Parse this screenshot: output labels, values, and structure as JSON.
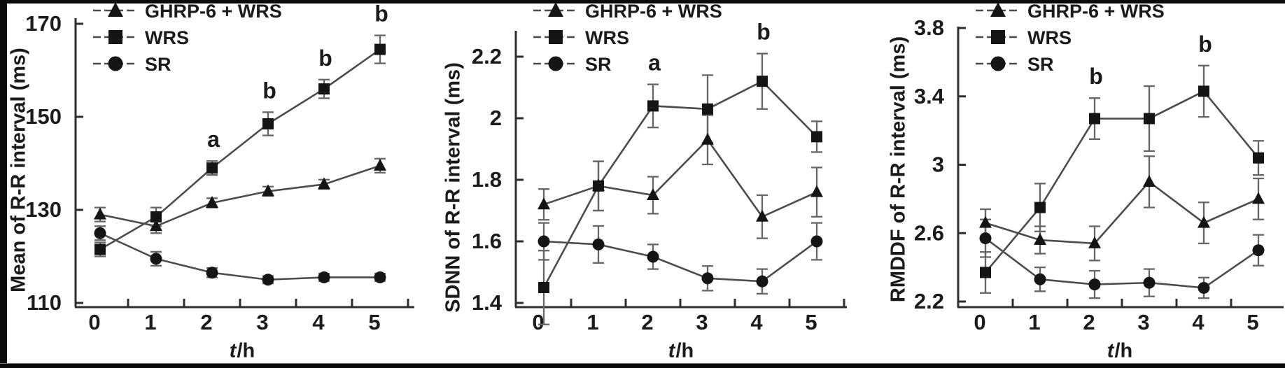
{
  "figure": {
    "description": "Three-panel line chart figure of heart-rate-variability measures over time",
    "background_color": "#ffffff",
    "border_color": "#0a0a0a",
    "ink_color": "#1b1b1b",
    "line_color": "#4c4c4c",
    "error_bar_color": "#666666",
    "marker_color": "#151515",
    "legend_labels": [
      "GHRP-6 + WRS",
      "WRS",
      "SR"
    ],
    "legend_markers": [
      "triangle-icon",
      "square-icon",
      "circle-icon"
    ]
  },
  "chart_data": [
    {
      "type": "line",
      "title": "",
      "ylabel": "Mean of R-R interval (ms)",
      "xlabel_italic": "t",
      "xlabel_rest": "/h",
      "x": [
        0,
        1,
        2,
        3,
        4,
        5
      ],
      "xticklabels": [
        "0",
        "1",
        "2",
        "3",
        "4",
        "5"
      ],
      "yticks": [
        110,
        130,
        150,
        170
      ],
      "ylim": [
        110,
        170
      ],
      "grid": false,
      "legend_position": "top-left",
      "series": [
        {
          "name": "GHRP-6 + WRS",
          "marker": "triangle",
          "values": [
            129,
            126.5,
            131.5,
            134,
            135.5,
            139.5
          ],
          "errors": [
            1.5,
            1.5,
            1,
            1,
            1,
            1.5
          ]
        },
        {
          "name": "WRS",
          "marker": "square",
          "values": [
            121.5,
            128.5,
            139,
            148.5,
            156,
            164.5
          ],
          "errors": [
            1.5,
            2,
            1.5,
            2.5,
            2,
            3
          ]
        },
        {
          "name": "SR",
          "marker": "circle",
          "values": [
            125,
            119.5,
            116.5,
            115,
            115.5,
            115.5
          ],
          "errors": [
            1.5,
            1.5,
            1,
            0.8,
            0.8,
            0.8
          ]
        }
      ],
      "annotations": [
        {
          "series": "WRS",
          "x": 2,
          "text": "a"
        },
        {
          "series": "WRS",
          "x": 3,
          "text": "b"
        },
        {
          "series": "WRS",
          "x": 4,
          "text": "b"
        },
        {
          "series": "WRS",
          "x": 5,
          "text": "b"
        }
      ]
    },
    {
      "type": "line",
      "title": "",
      "ylabel": "SDNN of R-R interval (ms)",
      "xlabel_italic": "t",
      "xlabel_rest": "/h",
      "x": [
        0,
        1,
        2,
        3,
        4,
        5
      ],
      "xticklabels": [
        "0",
        "1",
        "2",
        "3",
        "4",
        "5"
      ],
      "yticks": [
        1.4,
        1.6,
        1.8,
        2.0,
        2.2
      ],
      "ylim": [
        1.4,
        2.2
      ],
      "grid": false,
      "legend_position": "top-left",
      "series": [
        {
          "name": "GHRP-6 + WRS",
          "marker": "triangle",
          "values": [
            1.72,
            1.78,
            1.75,
            1.93,
            1.68,
            1.76
          ],
          "errors": [
            0.05,
            0.08,
            0.06,
            0.08,
            0.07,
            0.08
          ]
        },
        {
          "name": "WRS",
          "marker": "square",
          "values": [
            1.45,
            1.78,
            2.04,
            2.03,
            2.12,
            1.94
          ],
          "errors": [
            0.12,
            0.08,
            0.07,
            0.11,
            0.09,
            0.05
          ]
        },
        {
          "name": "SR",
          "marker": "circle",
          "values": [
            1.6,
            1.59,
            1.55,
            1.48,
            1.47,
            1.6
          ],
          "errors": [
            0.06,
            0.06,
            0.04,
            0.04,
            0.04,
            0.06
          ]
        }
      ],
      "annotations": [
        {
          "series": "WRS",
          "x": 2,
          "text": "a"
        },
        {
          "series": "WRS",
          "x": 4,
          "text": "b"
        }
      ]
    },
    {
      "type": "line",
      "title": "",
      "ylabel": "RMDDF of R-R interval (ms)",
      "xlabel_italic": "t",
      "xlabel_rest": "/h",
      "x": [
        0,
        1,
        2,
        3,
        4,
        5
      ],
      "xticklabels": [
        "0",
        "1",
        "2",
        "3",
        "4",
        "5"
      ],
      "yticks": [
        2.2,
        2.6,
        3.0,
        3.4,
        3.8
      ],
      "ylim": [
        2.2,
        3.8
      ],
      "grid": false,
      "legend_position": "top-left",
      "series": [
        {
          "name": "GHRP-6 + WRS",
          "marker": "triangle",
          "values": [
            2.66,
            2.56,
            2.54,
            2.9,
            2.66,
            2.8
          ],
          "errors": [
            0.08,
            0.08,
            0.1,
            0.15,
            0.12,
            0.12
          ]
        },
        {
          "name": "WRS",
          "marker": "square",
          "values": [
            2.37,
            2.75,
            3.27,
            3.27,
            3.43,
            3.04
          ],
          "errors": [
            0.12,
            0.14,
            0.12,
            0.19,
            0.15,
            0.1
          ]
        },
        {
          "name": "SR",
          "marker": "circle",
          "values": [
            2.57,
            2.33,
            2.3,
            2.31,
            2.28,
            2.5
          ],
          "errors": [
            0.11,
            0.07,
            0.08,
            0.08,
            0.06,
            0.09
          ]
        }
      ],
      "annotations": [
        {
          "series": "WRS",
          "x": 2,
          "text": "b"
        },
        {
          "series": "WRS",
          "x": 4,
          "text": "b"
        }
      ]
    }
  ]
}
